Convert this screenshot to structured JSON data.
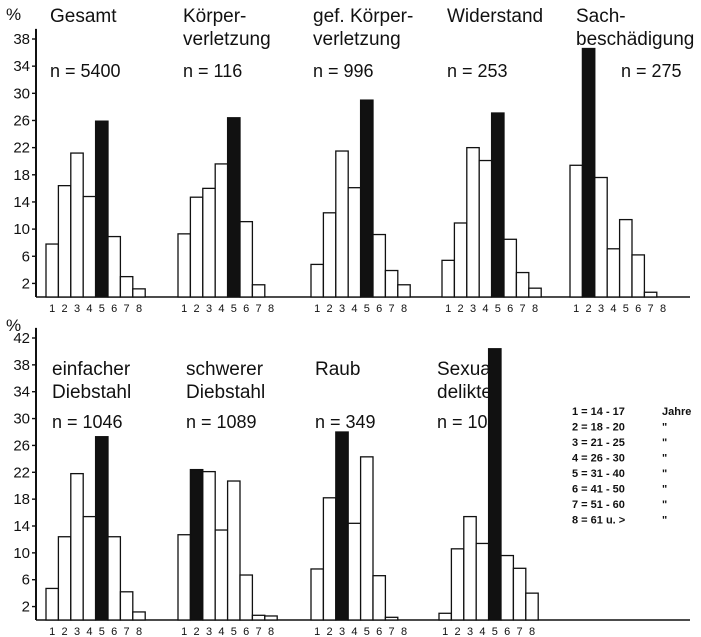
{
  "unit_label": "%",
  "category_ticks": [
    "1",
    "2",
    "3",
    "4",
    "5",
    "6",
    "7",
    "8"
  ],
  "colors": {
    "ink": "#111111",
    "background": "#ffffff"
  },
  "legend": [
    {
      "code": "1",
      "range": "14 - 17",
      "unit": "Jahre"
    },
    {
      "code": "2",
      "range": "18 - 20",
      "unit": "\""
    },
    {
      "code": "3",
      "range": "21 - 25",
      "unit": "\""
    },
    {
      "code": "4",
      "range": "26 - 30",
      "unit": "\""
    },
    {
      "code": "5",
      "range": "31 - 40",
      "unit": "\""
    },
    {
      "code": "6",
      "range": "41 - 50",
      "unit": "\""
    },
    {
      "code": "7",
      "range": "51 - 60",
      "unit": "\""
    },
    {
      "code": "8",
      "range": "61 u. >",
      "unit": "\""
    }
  ],
  "chart_data": [
    {
      "type": "bar",
      "title_lines": [
        "Gesamt"
      ],
      "n_label": "n = 5400",
      "categories": [
        "1",
        "2",
        "3",
        "4",
        "5",
        "6",
        "7",
        "8"
      ],
      "values": [
        7.8,
        16.4,
        21.2,
        14.8,
        25.9,
        8.9,
        3.0,
        1.2
      ],
      "highlight_index": 4,
      "yticks": [
        2,
        6,
        10,
        14,
        18,
        22,
        26,
        30,
        34,
        38
      ],
      "ylim": [
        0,
        40
      ]
    },
    {
      "type": "bar",
      "title_lines": [
        "Körper-",
        "verletzung"
      ],
      "n_label": "n = 116",
      "categories": [
        "1",
        "2",
        "3",
        "4",
        "5",
        "6",
        "7",
        "8"
      ],
      "values": [
        9.3,
        14.7,
        16.0,
        19.6,
        26.4,
        11.1,
        1.8,
        0
      ],
      "highlight_index": 4,
      "yticks": [
        2,
        6,
        10,
        14,
        18,
        22,
        26,
        30,
        34,
        38
      ],
      "ylim": [
        0,
        40
      ]
    },
    {
      "type": "bar",
      "title_lines": [
        "gef. Körper-",
        "verletzung"
      ],
      "n_label": "n = 996",
      "categories": [
        "1",
        "2",
        "3",
        "4",
        "5",
        "6",
        "7",
        "8"
      ],
      "values": [
        4.8,
        12.4,
        21.5,
        16.1,
        29.0,
        9.2,
        3.9,
        1.8
      ],
      "highlight_index": 4,
      "yticks": [
        2,
        6,
        10,
        14,
        18,
        22,
        26,
        30,
        34,
        38
      ],
      "ylim": [
        0,
        40
      ]
    },
    {
      "type": "bar",
      "title_lines": [
        "Widerstand"
      ],
      "n_label": "n = 253",
      "categories": [
        "1",
        "2",
        "3",
        "4",
        "5",
        "6",
        "7",
        "8"
      ],
      "values": [
        5.4,
        10.9,
        22.0,
        20.1,
        27.1,
        8.5,
        3.6,
        1.3
      ],
      "highlight_index": 4,
      "yticks": [
        2,
        6,
        10,
        14,
        18,
        22,
        26,
        30,
        34,
        38
      ],
      "ylim": [
        0,
        40
      ]
    },
    {
      "type": "bar",
      "title_lines": [
        "Sach-",
        "beschädigung"
      ],
      "n_label": "n = 275",
      "categories": [
        "1",
        "2",
        "3",
        "4",
        "5",
        "6",
        "7",
        "8"
      ],
      "values": [
        19.4,
        36.6,
        17.6,
        7.1,
        11.4,
        6.2,
        0.7,
        0
      ],
      "highlight_index": 1,
      "yticks": [
        2,
        6,
        10,
        14,
        18,
        22,
        26,
        30,
        34,
        38
      ],
      "ylim": [
        0,
        40
      ]
    },
    {
      "type": "bar",
      "title_lines": [
        "einfacher",
        "Diebstahl"
      ],
      "n_label": "n = 1046",
      "categories": [
        "1",
        "2",
        "3",
        "4",
        "5",
        "6",
        "7",
        "8"
      ],
      "values": [
        4.7,
        12.4,
        21.8,
        15.4,
        27.3,
        12.4,
        4.2,
        1.2
      ],
      "highlight_index": 4,
      "yticks": [
        2,
        6,
        10,
        14,
        18,
        22,
        26,
        30,
        34,
        38,
        42
      ],
      "ylim": [
        0,
        43
      ]
    },
    {
      "type": "bar",
      "title_lines": [
        "schwerer",
        "Diebstahl"
      ],
      "n_label": "n = 1089",
      "categories": [
        "1",
        "2",
        "3",
        "4",
        "5",
        "6",
        "7",
        "8"
      ],
      "values": [
        12.7,
        22.4,
        22.1,
        13.4,
        20.7,
        6.7,
        0.7,
        0.6
      ],
      "highlight_index": 1,
      "yticks": [
        2,
        6,
        10,
        14,
        18,
        22,
        26,
        30,
        34,
        38,
        42
      ],
      "ylim": [
        0,
        43
      ]
    },
    {
      "type": "bar",
      "title_lines": [
        "Raub"
      ],
      "n_label": "n = 349",
      "categories": [
        "1",
        "2",
        "3",
        "4",
        "5",
        "6",
        "7",
        "8"
      ],
      "values": [
        7.6,
        18.2,
        28.0,
        14.4,
        24.3,
        6.6,
        0.4,
        0
      ],
      "highlight_index": 2,
      "yticks": [
        2,
        6,
        10,
        14,
        18,
        22,
        26,
        30,
        34,
        38,
        42
      ],
      "ylim": [
        0,
        43
      ]
    },
    {
      "type": "bar",
      "title_lines": [
        "Sexual-",
        "delikte"
      ],
      "n_label": "n = 104",
      "categories": [
        "1",
        "2",
        "3",
        "4",
        "5",
        "6",
        "7",
        "8"
      ],
      "values": [
        1.0,
        10.6,
        15.4,
        11.4,
        40.4,
        9.6,
        7.7,
        4.0
      ],
      "highlight_index": 4,
      "yticks": [
        2,
        6,
        10,
        14,
        18,
        22,
        26,
        30,
        34,
        38,
        42
      ],
      "ylim": [
        0,
        43
      ]
    }
  ]
}
